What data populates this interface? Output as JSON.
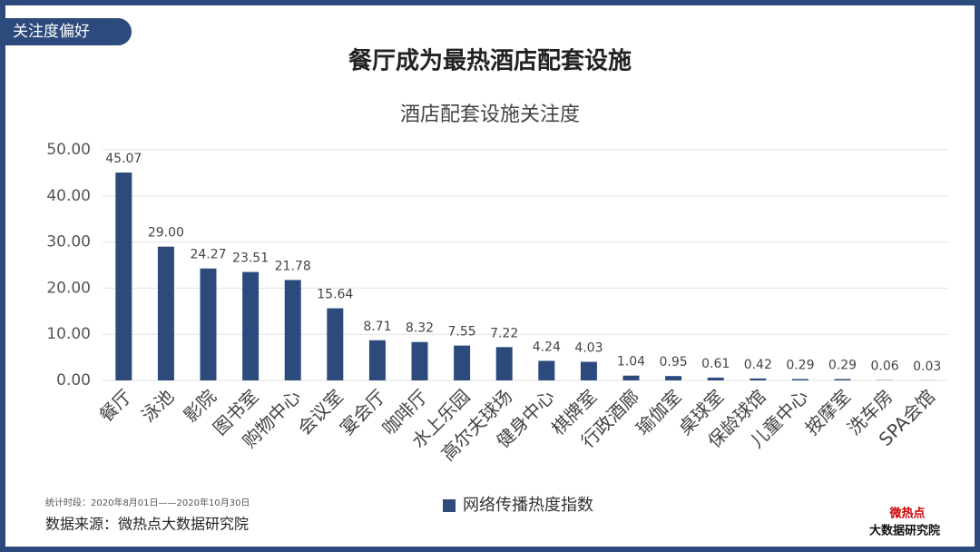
{
  "tag": "关注度偏好",
  "headline": "餐厅成为最热酒店配套设施",
  "period": "统计时段：2020年8月01日——2020年10月30日",
  "source": "数据来源：微热点大数据研究院",
  "logo": {
    "top": "微热点",
    "bottom": "大数据研究院"
  },
  "chart_data": {
    "type": "bar",
    "title": "酒店配套设施关注度",
    "categories": [
      "餐厅",
      "泳池",
      "影院",
      "图书室",
      "购物中心",
      "会议室",
      "宴会厅",
      "咖啡厅",
      "水上乐园",
      "高尔夫球场",
      "健身中心",
      "棋牌室",
      "行政酒廊",
      "瑜伽室",
      "桌球室",
      "保龄球馆",
      "儿童中心",
      "按摩室",
      "洗车房",
      "SPA会馆"
    ],
    "series": [
      {
        "name": "网络传播热度指数",
        "color": "#2d4a7c",
        "values": [
          45.07,
          29,
          24.27,
          23.51,
          21.78,
          15.64,
          8.71,
          8.32,
          7.55,
          7.22,
          4.24,
          4.03,
          1.04,
          0.95,
          0.61,
          0.42,
          0.29,
          0.29,
          0.06,
          0.03
        ],
        "value_labels": [
          "45.07",
          "29.00",
          "24.27",
          "23.51",
          "21.78",
          "15.64",
          "8.71",
          "8.32",
          "7.55",
          "7.22",
          "4.24",
          "4.03",
          "1.04",
          "0.95",
          "0.61",
          "0.42",
          "0.29",
          "0.29",
          "0.06",
          "0.03"
        ]
      }
    ],
    "ylim": [
      0,
      50
    ],
    "yticks": [
      {
        "value": 0,
        "label": "0.00"
      },
      {
        "value": 10,
        "label": "10.00"
      },
      {
        "value": 20,
        "label": "20.00"
      },
      {
        "value": 30,
        "label": "30.00"
      },
      {
        "value": 40,
        "label": "40.00"
      },
      {
        "value": 50,
        "label": "50.00"
      }
    ],
    "grid": true,
    "legend": "bottom"
  }
}
